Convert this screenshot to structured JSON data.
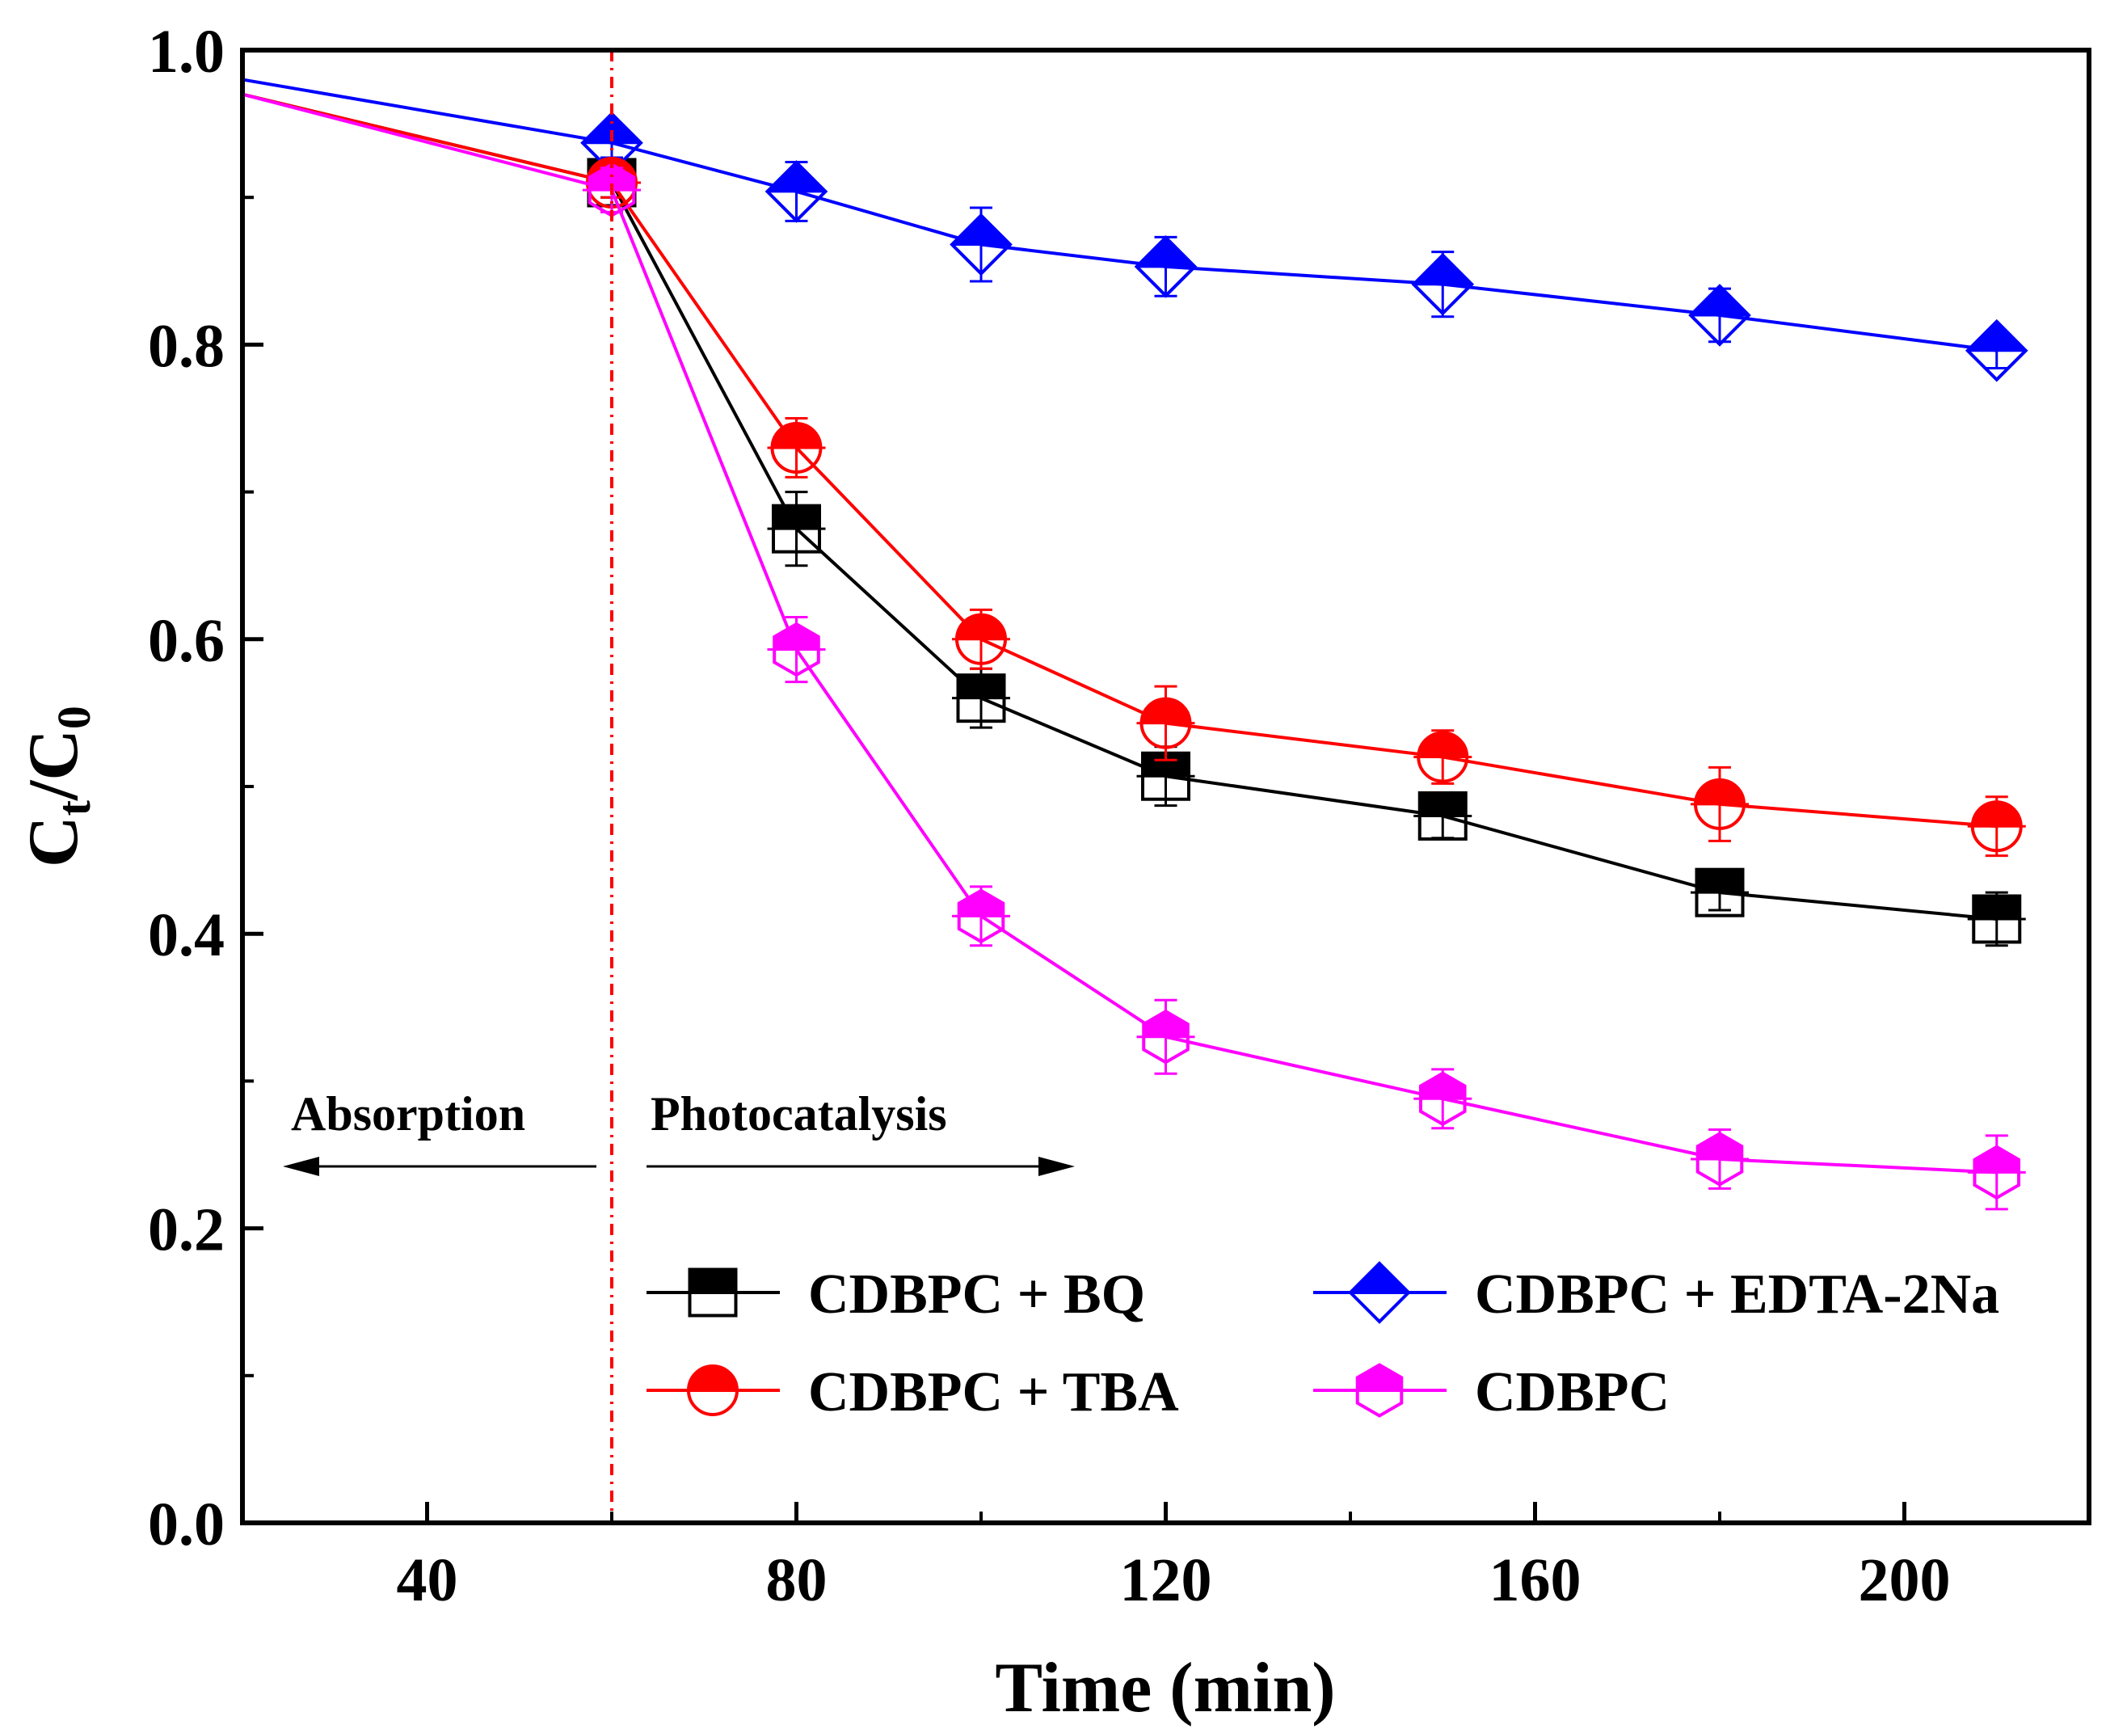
{
  "chart_data": {
    "type": "line",
    "title": "",
    "xlabel": "Time (min)",
    "ylabel": {
      "main": "C",
      "sub1": "t",
      "sep": "/C",
      "sub2": "0"
    },
    "xlim": [
      20,
      220
    ],
    "ylim": [
      0.0,
      1.0
    ],
    "xticks": [
      40,
      80,
      120,
      160,
      200
    ],
    "xtick_labels": [
      "40",
      "80",
      "120",
      "160",
      "200"
    ],
    "yticks": [
      0.0,
      0.2,
      0.4,
      0.6,
      0.8,
      1.0
    ],
    "ytick_labels": [
      "0.0",
      "0.2",
      "0.4",
      "0.6",
      "0.8",
      "1.0"
    ],
    "grid": false,
    "divider_x": 60,
    "annotations": {
      "left": "Absorption",
      "right": "Photocatalysis"
    },
    "legend_position": "lower-right",
    "series": [
      {
        "name": "CDBPC + BQ",
        "marker": "square",
        "color": "#000000",
        "x": [
          20,
          60,
          80,
          100,
          120,
          150,
          180,
          210
        ],
        "y": [
          0.97,
          0.91,
          0.675,
          0.56,
          0.507,
          0.48,
          0.428,
          0.41
        ],
        "err": [
          0,
          0.01,
          0.025,
          0.02,
          0.02,
          0.015,
          0.012,
          0.018
        ],
        "marked": [
          false,
          true,
          true,
          true,
          true,
          true,
          true,
          true
        ]
      },
      {
        "name": "CDBPC + EDTA-2Na",
        "marker": "diamond",
        "color": "#0000ff",
        "x": [
          20,
          60,
          80,
          100,
          120,
          150,
          180,
          210
        ],
        "y": [
          0.98,
          0.937,
          0.904,
          0.868,
          0.853,
          0.841,
          0.82,
          0.796
        ],
        "err": [
          0,
          0.01,
          0.02,
          0.025,
          0.02,
          0.022,
          0.018,
          0.012
        ],
        "marked": [
          false,
          true,
          true,
          true,
          true,
          true,
          true,
          true
        ]
      },
      {
        "name": "CDBPC + TBA",
        "marker": "circle",
        "color": "#ff0000",
        "x": [
          20,
          60,
          80,
          100,
          120,
          150,
          180,
          210
        ],
        "y": [
          0.97,
          0.91,
          0.73,
          0.6,
          0.543,
          0.52,
          0.488,
          0.473
        ],
        "err": [
          0,
          0.01,
          0.02,
          0.02,
          0.025,
          0.018,
          0.025,
          0.02
        ],
        "marked": [
          false,
          true,
          true,
          true,
          true,
          true,
          true,
          true
        ]
      },
      {
        "name": "CDBPC",
        "marker": "hexagon",
        "color": "#ff00ff",
        "x": [
          20,
          60,
          80,
          100,
          120,
          150,
          180,
          210
        ],
        "y": [
          0.97,
          0.905,
          0.593,
          0.412,
          0.33,
          0.288,
          0.247,
          0.238
        ],
        "err": [
          0,
          0.015,
          0.022,
          0.02,
          0.025,
          0.02,
          0.02,
          0.025
        ],
        "marked": [
          false,
          true,
          true,
          true,
          true,
          true,
          true,
          true
        ]
      }
    ]
  }
}
